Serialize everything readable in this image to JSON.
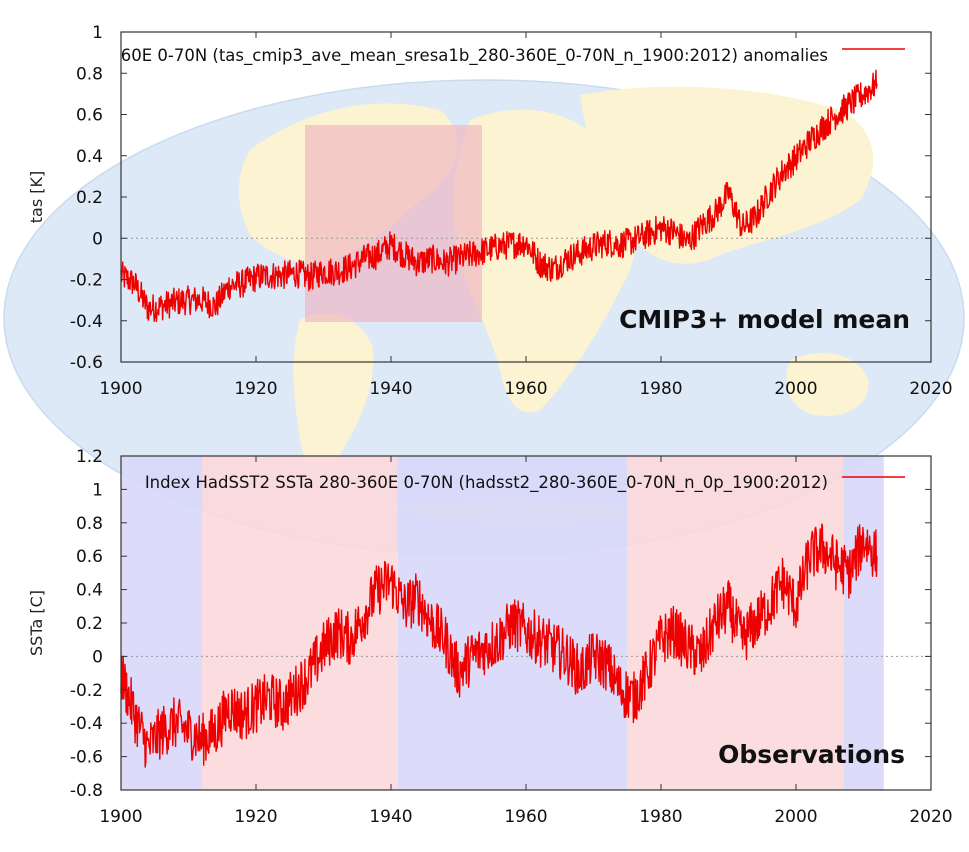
{
  "chart_data": [
    {
      "type": "line",
      "title": "60E 0-70N (tas_cmip3_ave_mean_sresa1b_280-360E_0-70N_n_1900:2012) anomalies",
      "ylabel": "tas [K]",
      "xlabel": "",
      "xlim": [
        1900,
        2020
      ],
      "ylim": [
        -0.6,
        1.0
      ],
      "x_ticks": [
        "1900",
        "1920",
        "1940",
        "1960",
        "1980",
        "2000",
        "2020"
      ],
      "y_ticks": [
        "-0.6",
        "-0.4",
        "-0.2",
        "0",
        "0.2",
        "0.4",
        "0.6",
        "0.8",
        "1"
      ],
      "annotation": "CMIP3+ model mean",
      "legend": "top-right",
      "series": [
        {
          "name": "60E 0-70N (tas_cmip3_ave_mean_sresa1b_280-360E_0-70N_n_1900:2012) anomalies",
          "color": "#ee0000",
          "x": [
            1900,
            1902,
            1904,
            1906,
            1908,
            1910,
            1912,
            1914,
            1916,
            1918,
            1920,
            1922,
            1924,
            1926,
            1928,
            1930,
            1932,
            1934,
            1936,
            1938,
            1940,
            1942,
            1944,
            1946,
            1948,
            1950,
            1952,
            1954,
            1956,
            1958,
            1960,
            1962,
            1964,
            1966,
            1968,
            1970,
            1972,
            1974,
            1976,
            1978,
            1980,
            1982,
            1984,
            1986,
            1988,
            1990,
            1992,
            1994,
            1996,
            1998,
            2000,
            2002,
            2004,
            2006,
            2008,
            2010,
            2012
          ],
          "values": [
            -0.18,
            -0.22,
            -0.34,
            -0.33,
            -0.31,
            -0.3,
            -0.3,
            -0.33,
            -0.23,
            -0.22,
            -0.19,
            -0.18,
            -0.18,
            -0.17,
            -0.19,
            -0.16,
            -0.16,
            -0.14,
            -0.1,
            -0.08,
            -0.03,
            -0.08,
            -0.12,
            -0.1,
            -0.12,
            -0.1,
            -0.08,
            -0.06,
            -0.04,
            -0.03,
            -0.02,
            -0.12,
            -0.15,
            -0.1,
            -0.07,
            -0.04,
            -0.02,
            -0.03,
            -0.01,
            0.02,
            0.05,
            0.03,
            -0.02,
            0.06,
            0.12,
            0.22,
            0.05,
            0.1,
            0.22,
            0.32,
            0.39,
            0.47,
            0.54,
            0.6,
            0.65,
            0.7,
            0.75
          ]
        }
      ]
    },
    {
      "type": "line",
      "title": "Index HadSST2 SSTa 280-360E 0-70N (hadsst2_280-360E_0-70N_n_0p_1900:2012)",
      "ylabel": "SSTa [C]",
      "xlabel": "",
      "xlim": [
        1900,
        2020
      ],
      "ylim": [
        -0.8,
        1.2
      ],
      "x_ticks": [
        "1900",
        "1920",
        "1940",
        "1960",
        "1980",
        "2000",
        "2020"
      ],
      "y_ticks": [
        "-0.8",
        "-0.6",
        "-0.4",
        "-0.2",
        "0",
        "0.2",
        "0.4",
        "0.6",
        "0.8",
        "1",
        "1.2"
      ],
      "annotation": "Observations",
      "legend": "top-right",
      "background_bands": [
        {
          "from": 1900,
          "to": 1912,
          "color": "#d8d8fa"
        },
        {
          "from": 1912,
          "to": 1941,
          "color": "#fbd8dc"
        },
        {
          "from": 1941,
          "to": 1975,
          "color": "#d8d8fa"
        },
        {
          "from": 1975,
          "to": 2007,
          "color": "#fbd8dc"
        },
        {
          "from": 2007,
          "to": 2013,
          "color": "#d8d8fa"
        }
      ],
      "series": [
        {
          "name": "Index HadSST2 SSTa 280-360E 0-70N (hadsst2_280-360E_0-70N_n_0p_1900:2012)",
          "color": "#ee0000",
          "x": [
            1900,
            1902,
            1904,
            1906,
            1908,
            1910,
            1912,
            1914,
            1916,
            1918,
            1920,
            1922,
            1924,
            1926,
            1928,
            1930,
            1932,
            1934,
            1936,
            1938,
            1940,
            1942,
            1944,
            1946,
            1948,
            1950,
            1952,
            1954,
            1956,
            1958,
            1960,
            1962,
            1964,
            1966,
            1968,
            1970,
            1972,
            1974,
            1976,
            1978,
            1980,
            1982,
            1984,
            1986,
            1988,
            1990,
            1992,
            1994,
            1996,
            1998,
            2000,
            2002,
            2004,
            2006,
            2008,
            2010,
            2012
          ],
          "values": [
            -0.1,
            -0.35,
            -0.55,
            -0.45,
            -0.4,
            -0.45,
            -0.5,
            -0.45,
            -0.3,
            -0.35,
            -0.3,
            -0.25,
            -0.3,
            -0.2,
            -0.1,
            0.05,
            0.15,
            0.1,
            0.25,
            0.4,
            0.45,
            0.3,
            0.35,
            0.2,
            0.1,
            -0.1,
            0.0,
            0.05,
            0.1,
            0.2,
            0.15,
            0.1,
            0.05,
            0.0,
            -0.1,
            0.0,
            -0.05,
            -0.2,
            -0.25,
            -0.1,
            0.1,
            0.15,
            0.05,
            0.0,
            0.2,
            0.3,
            0.1,
            0.2,
            0.3,
            0.45,
            0.3,
            0.6,
            0.65,
            0.55,
            0.5,
            0.7,
            0.6
          ]
        }
      ]
    }
  ]
}
